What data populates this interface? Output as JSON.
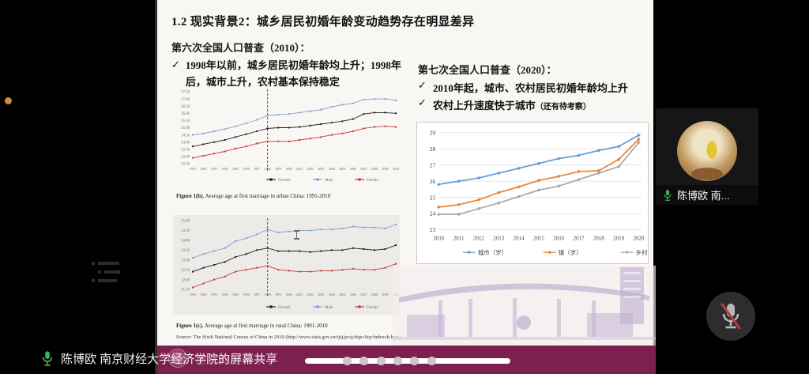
{
  "share_banner": {
    "label": "陈博欧 南京财经大学经济学院的屏幕共享"
  },
  "participant": {
    "name": "陈博欧 南..."
  },
  "progress": {
    "dot_count": 6
  },
  "slide": {
    "title": "1.2 现实背景2：城乡居民初婚年龄变动趋势存在明显差异",
    "census6": {
      "heading": "第六次全国人口普查（2010）：",
      "check": "✓",
      "bullet": "1998年以前，城乡居民初婚年龄均上升；1998年后，城市上升，农村基本保持稳定"
    },
    "census7": {
      "heading": "第七次全国人口普查（2020）：",
      "check": "✓",
      "bullets": [
        "2010年起，城市、农村居民初婚年龄均上升",
        "农村上升速度快于城市"
      ],
      "bullet2_note": "（还有待考察）"
    },
    "figure_b_bold": "Figure 1(b).",
    "figure_b_rest": " Average age at first marriage in urban China: 1991-2010",
    "figure_c_bold": "Figure 1(c).",
    "figure_c_rest": " Average age at first marriage in rural China: 1991-2010",
    "source": "Source: The Sixth National Census of China in 2010 (http://www.stats.gov.cn/tjsj/pcsj/rkpc/6rp/indexch.htm)",
    "footer_watermark": "南京财经大学"
  },
  "colors": {
    "footer_maroon": "#7c2050",
    "mic_green": "#3db14d",
    "mute_red": "#b04237",
    "c7_blue": "#5b9bd5",
    "c7_orange": "#ed7d31",
    "c7_gray": "#a5a5a5"
  },
  "chart_data": [
    {
      "id": "urban",
      "type": "line",
      "title": "Figure 1(b). Average age at first marriage in urban China: 1991-2010",
      "x": [
        "1991",
        "1992",
        "1993",
        "1994",
        "1995",
        "1996",
        "1997",
        "1998",
        "1999",
        "2000",
        "2001",
        "2002",
        "2003",
        "2004",
        "2005",
        "2006",
        "2007",
        "2008",
        "2009",
        "2010"
      ],
      "ylim": [
        22.5,
        27.5
      ],
      "ystep": 0.5,
      "ydec": 2,
      "grid": false,
      "vline": 7,
      "legend_position": "bottom",
      "series": [
        {
          "name": "Overall",
          "color": "#1f1f1f",
          "values": [
            23.7,
            23.85,
            24.0,
            24.15,
            24.35,
            24.55,
            24.75,
            24.95,
            25.0,
            25.0,
            25.05,
            25.15,
            25.25,
            25.35,
            25.45,
            25.6,
            25.95,
            26.05,
            26.05,
            26.0
          ]
        },
        {
          "name": "Male",
          "color": "#7f9fd0",
          "values": [
            24.5,
            24.6,
            24.75,
            24.9,
            25.1,
            25.3,
            25.55,
            25.85,
            25.9,
            25.95,
            26.05,
            26.15,
            26.25,
            26.45,
            26.6,
            26.7,
            26.95,
            27.0,
            27.0,
            26.9
          ]
        },
        {
          "name": "Female",
          "color": "#c23b3b",
          "values": [
            22.9,
            23.05,
            23.2,
            23.35,
            23.55,
            23.7,
            23.9,
            24.05,
            24.05,
            24.05,
            24.15,
            24.25,
            24.35,
            24.5,
            24.6,
            24.75,
            24.95,
            25.05,
            25.1,
            25.05
          ]
        }
      ]
    },
    {
      "id": "rural",
      "type": "line",
      "title": "Figure 1(c). Average age at first marriage in rural China: 1991-2010",
      "x": [
        "1991",
        "1992",
        "1993",
        "1994",
        "1995",
        "1996",
        "1997",
        "1998",
        "1999",
        "2000",
        "2001",
        "2002",
        "2003",
        "2004",
        "2005",
        "2006",
        "2007",
        "2008",
        "2009",
        "2010"
      ],
      "ylim": [
        21.5,
        25.0
      ],
      "ystep": 0.5,
      "ydec": 2,
      "grid": false,
      "vline": 7,
      "legend_position": "bottom",
      "series": [
        {
          "name": "Overall",
          "color": "#1f1f1f",
          "values": [
            22.4,
            22.6,
            22.75,
            22.9,
            23.15,
            23.3,
            23.5,
            23.6,
            23.45,
            23.45,
            23.45,
            23.4,
            23.45,
            23.5,
            23.5,
            23.6,
            23.55,
            23.5,
            23.55,
            23.75
          ]
        },
        {
          "name": "Male",
          "color": "#7f9fd0",
          "values": [
            23.1,
            23.3,
            23.45,
            23.6,
            23.95,
            24.1,
            24.3,
            24.55,
            24.4,
            24.45,
            24.5,
            24.5,
            24.55,
            24.55,
            24.6,
            24.7,
            24.65,
            24.65,
            24.6,
            24.8
          ]
        },
        {
          "name": "Female",
          "color": "#c23b3b",
          "values": [
            21.6,
            21.8,
            22.0,
            22.15,
            22.4,
            22.5,
            22.6,
            22.7,
            22.5,
            22.45,
            22.4,
            22.4,
            22.45,
            22.45,
            22.5,
            22.55,
            22.5,
            22.5,
            22.6,
            22.8
          ]
        }
      ]
    },
    {
      "id": "census7",
      "type": "line",
      "title": "",
      "x": [
        "2010",
        "2011",
        "2012",
        "2013",
        "2014",
        "2015",
        "2016",
        "2017",
        "2018",
        "2019",
        "2020"
      ],
      "ylim": [
        23,
        29
      ],
      "ystep": 1,
      "ydec": 0,
      "grid": true,
      "vline": null,
      "legend_position": "bottom",
      "series": [
        {
          "name": "城市（岁）",
          "color": "#5b9bd5",
          "values": [
            25.8,
            26.0,
            26.2,
            26.5,
            26.8,
            27.1,
            27.4,
            27.6,
            27.9,
            28.15,
            28.85
          ]
        },
        {
          "name": "镇（岁）",
          "color": "#ed7d31",
          "values": [
            24.4,
            24.55,
            24.85,
            25.3,
            25.65,
            26.05,
            26.3,
            26.6,
            26.65,
            27.35,
            28.6
          ]
        },
        {
          "name": "乡村（岁）",
          "color": "#a5a5a5",
          "values": [
            23.95,
            23.95,
            24.3,
            24.65,
            25.05,
            25.45,
            25.7,
            26.1,
            26.5,
            26.9,
            28.4
          ]
        }
      ]
    }
  ]
}
